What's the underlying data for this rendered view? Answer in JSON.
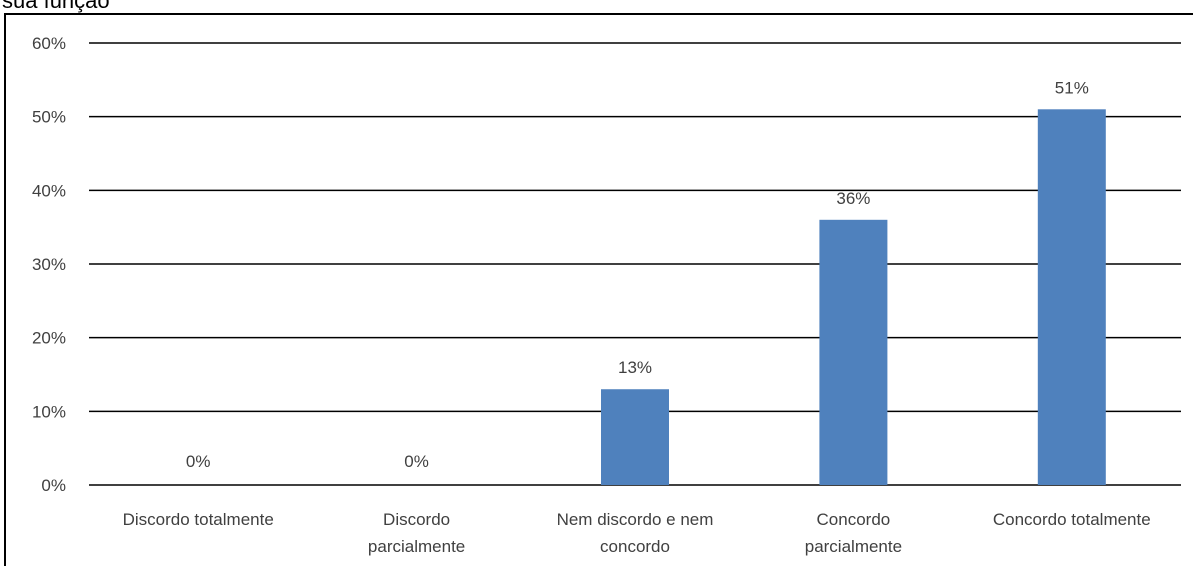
{
  "caption": "sua função",
  "chart_data": {
    "type": "bar",
    "categories": [
      [
        "Discordo totalmente"
      ],
      [
        "Discordo",
        "parcialmente"
      ],
      [
        "Nem discordo e nem",
        "concordo"
      ],
      [
        "Concordo",
        "parcialmente"
      ],
      [
        "Concordo totalmente"
      ]
    ],
    "values": [
      0,
      0,
      13,
      36,
      51
    ],
    "data_labels": [
      "0%",
      "0%",
      "13%",
      "36%",
      "51%"
    ],
    "yticks": [
      "0%",
      "10%",
      "20%",
      "30%",
      "40%",
      "50%",
      "60%"
    ],
    "ylim": [
      0,
      60
    ],
    "grid": true,
    "bar_color": "#4f81bd",
    "axis_color": "#000000",
    "label_color": "#404040"
  }
}
